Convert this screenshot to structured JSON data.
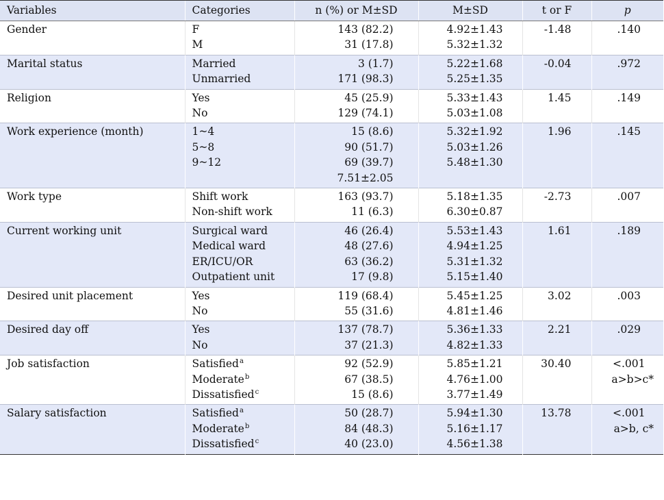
{
  "headers": [
    "Variables",
    "Categories",
    "n (%) or M±SD",
    "M±SD",
    "t or F",
    "p"
  ],
  "rows": [
    {
      "variable": "Gender",
      "categories": [
        "F",
        "M"
      ],
      "marks": [
        "",
        ""
      ],
      "n": [
        "143 (82.2)",
        "31 (17.8)"
      ],
      "msd": [
        "4.92±1.43",
        "5.32±1.32"
      ],
      "t": "-1.48",
      "p": ".140",
      "posthoc": ""
    },
    {
      "variable": "Marital status",
      "categories": [
        "Married",
        "Unmarried"
      ],
      "marks": [
        "",
        ""
      ],
      "n": [
        "3 (1.7)",
        "171 (98.3)"
      ],
      "msd": [
        "5.22±1.68",
        "5.25±1.35"
      ],
      "t": "-0.04",
      "p": ".972",
      "posthoc": ""
    },
    {
      "variable": "Religion",
      "categories": [
        "Yes",
        "No"
      ],
      "marks": [
        "",
        ""
      ],
      "n": [
        "45 (25.9)",
        "129 (74.1)"
      ],
      "msd": [
        "5.33±1.43",
        "5.03±1.08"
      ],
      "t": "1.45",
      "p": ".149",
      "posthoc": ""
    },
    {
      "variable": "Work experience (month)",
      "categories": [
        "1~4",
        "5~8",
        "9~12"
      ],
      "marks": [
        "",
        "",
        ""
      ],
      "n": [
        "15 (8.6)",
        "90 (51.7)",
        "69 (39.7)",
        "7.51±2.05"
      ],
      "msd": [
        "5.32±1.92",
        "5.03±1.26",
        "5.48±1.30"
      ],
      "t": "1.96",
      "p": ".145",
      "posthoc": ""
    },
    {
      "variable": "Work type",
      "categories": [
        "Shift work",
        "Non-shift work"
      ],
      "marks": [
        "",
        ""
      ],
      "n": [
        "163 (93.7)",
        "11 (6.3)"
      ],
      "msd": [
        "5.18±1.35",
        "6.30±0.87"
      ],
      "t": "-2.73",
      "p": ".007",
      "posthoc": ""
    },
    {
      "variable": "Current working unit",
      "categories": [
        "Surgical ward",
        "Medical ward",
        "ER/ICU/OR",
        "Outpatient unit"
      ],
      "marks": [
        "",
        "",
        "",
        ""
      ],
      "n": [
        "46 (26.4)",
        "48 (27.6)",
        "63 (36.2)",
        "17 (9.8)"
      ],
      "msd": [
        "5.53±1.43",
        "4.94±1.25",
        "5.31±1.32",
        "5.15±1.40"
      ],
      "t": "1.61",
      "p": ".189",
      "posthoc": ""
    },
    {
      "variable": "Desired unit placement",
      "categories": [
        "Yes",
        "No"
      ],
      "marks": [
        "",
        ""
      ],
      "n": [
        "119 (68.4)",
        "55 (31.6)"
      ],
      "msd": [
        "5.45±1.25",
        "4.81±1.46"
      ],
      "t": "3.02",
      "p": ".003",
      "posthoc": ""
    },
    {
      "variable": "Desired day off",
      "categories": [
        "Yes",
        "No"
      ],
      "marks": [
        "",
        ""
      ],
      "n": [
        "137 (78.7)",
        "37 (21.3)"
      ],
      "msd": [
        "5.36±1.33",
        "4.82±1.33"
      ],
      "t": "2.21",
      "p": ".029",
      "posthoc": ""
    },
    {
      "variable": "Job satisfaction",
      "categories": [
        "Satisfied",
        "Moderate",
        "Dissatisfied"
      ],
      "marks": [
        "a",
        "b",
        "c"
      ],
      "n": [
        "92 (52.9)",
        "67 (38.5)",
        "15 (8.6)"
      ],
      "msd": [
        "5.85±1.21",
        "4.76±1.00",
        "3.77±1.49"
      ],
      "t": "30.40",
      "p": "<.001",
      "posthoc": "a>b>c*"
    },
    {
      "variable": "Salary satisfaction",
      "categories": [
        "Satisfied",
        "Moderate",
        "Dissatisfied"
      ],
      "marks": [
        "a",
        "b",
        "c"
      ],
      "n": [
        "50 (28.7)",
        "84 (48.3)",
        "40 (23.0)"
      ],
      "msd": [
        "5.94±1.30",
        "5.16±1.17",
        "4.56±1.38"
      ],
      "t": "13.78",
      "p": "<.001",
      "posthoc": "a>b, c*"
    }
  ]
}
